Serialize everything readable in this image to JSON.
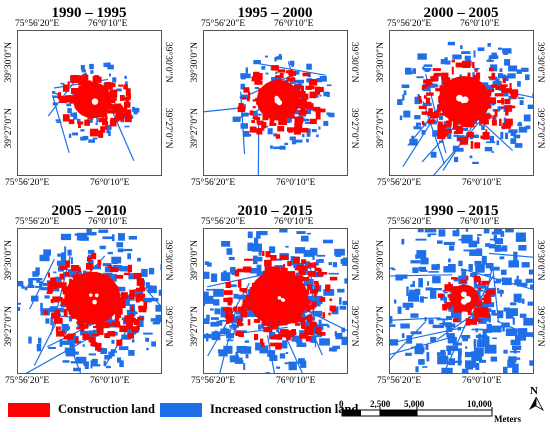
{
  "panels": [
    {
      "title": "1990 – 1995"
    },
    {
      "title": "1995 – 2000"
    },
    {
      "title": "2000 – 2005"
    },
    {
      "title": "2005 – 2010"
    },
    {
      "title": "2010 – 2015"
    },
    {
      "title": "1990 – 2015"
    }
  ],
  "map_ticks": {
    "lon_left": "75°56′20″E",
    "lon_right": "76°0′10″E",
    "lat_top": "39°30′0″N",
    "lat_bottom": "39°27′0″N"
  },
  "legend": {
    "construction": {
      "label": "Construction land",
      "color": "#ff0000"
    },
    "increased": {
      "label": "Increased construction land",
      "color": "#1e6fe8"
    }
  },
  "scalebar": {
    "ticks": [
      "0",
      "2,500",
      "5,000",
      "10,000"
    ],
    "unit": "Meters"
  },
  "north_arrow": {
    "letter": "N"
  },
  "expansion_levels": [
    0.2,
    0.35,
    0.6,
    0.75,
    0.85,
    1.0
  ]
}
